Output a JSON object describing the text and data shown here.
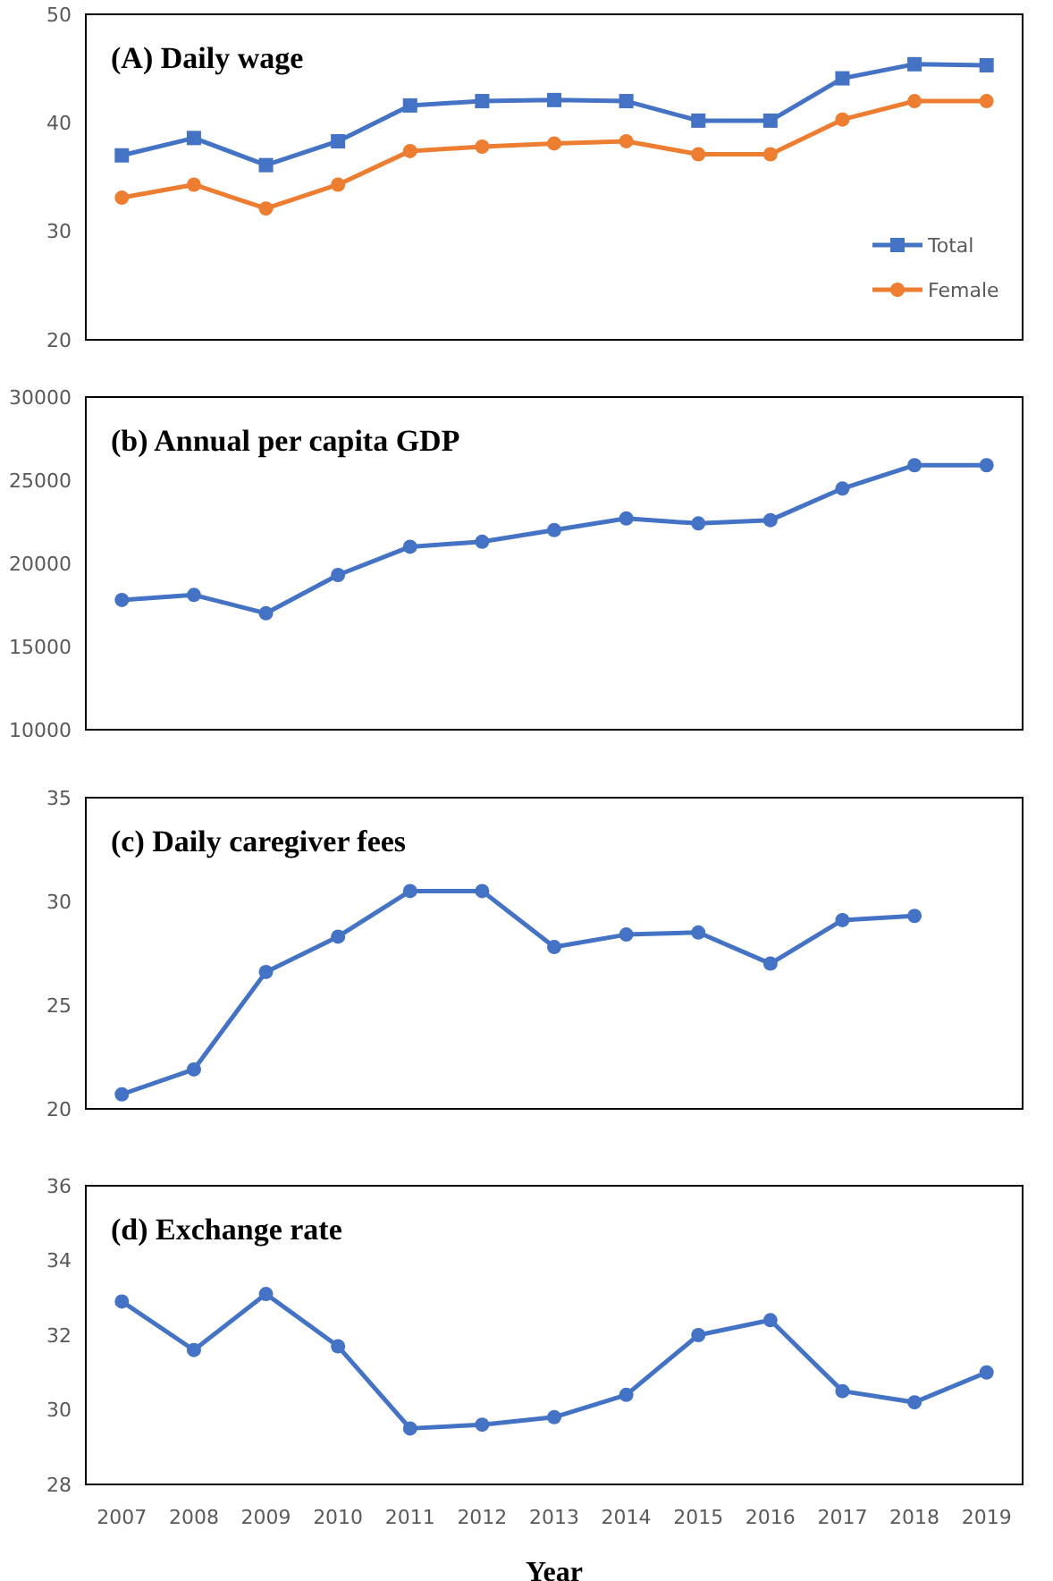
{
  "chart_data": [
    {
      "type": "line",
      "title": "(A) Daily wage",
      "categories": [
        "2007",
        "2008",
        "2009",
        "2010",
        "2011",
        "2012",
        "2013",
        "2014",
        "2015",
        "2016",
        "2017",
        "2018",
        "2019"
      ],
      "series": [
        {
          "name": "Total",
          "color": "#4472c4",
          "marker": "square",
          "values": [
            37,
            38.6,
            36.1,
            38.3,
            41.6,
            42,
            42.1,
            42,
            40.2,
            40.2,
            44.1,
            45.4,
            45.3
          ]
        },
        {
          "name": "Female",
          "color": "#ed7d31",
          "marker": "circle",
          "values": [
            33.1,
            34.3,
            32.1,
            34.3,
            37.4,
            37.8,
            38.1,
            38.3,
            37.1,
            37.1,
            40.3,
            42,
            42
          ]
        }
      ],
      "ylim": [
        20,
        50
      ],
      "yticks": [
        20,
        30,
        40,
        50
      ],
      "legend": "bottom right",
      "grid": false,
      "tick_labels": "y"
    },
    {
      "type": "line",
      "title": "(b) Annual per capita GDP",
      "categories": [
        "2007",
        "2008",
        "2009",
        "2010",
        "2011",
        "2012",
        "2013",
        "2014",
        "2015",
        "2016",
        "2017",
        "2018",
        "2019"
      ],
      "series": [
        {
          "color": "#4472c4",
          "marker": "circle",
          "values": [
            17800,
            18100,
            17000,
            19300,
            21000,
            21300,
            22000,
            22700,
            22400,
            22600,
            24500,
            25900,
            25900
          ]
        }
      ],
      "ylim": [
        10000,
        30000
      ],
      "yticks": [
        10000,
        15000,
        20000,
        25000,
        30000
      ],
      "grid": false,
      "tick_labels": "y"
    },
    {
      "type": "line",
      "title": "(c) Daily caregiver fees",
      "categories": [
        "2007",
        "2008",
        "2009",
        "2010",
        "2011",
        "2012",
        "2013",
        "2014",
        "2015",
        "2016",
        "2017",
        "2018",
        "2019"
      ],
      "series": [
        {
          "color": "#4472c4",
          "marker": "circle",
          "values": [
            20.7,
            21.9,
            26.6,
            28.3,
            30.5,
            30.5,
            27.8,
            28.4,
            28.5,
            27,
            29.1,
            29.3,
            null
          ]
        }
      ],
      "ylim": [
        20,
        35
      ],
      "yticks": [
        20,
        25,
        30,
        35
      ],
      "grid": false,
      "tick_labels": "y"
    },
    {
      "type": "line",
      "title": "(d) Exchange rate",
      "xlabel": "Year",
      "categories": [
        "2007",
        "2008",
        "2009",
        "2010",
        "2011",
        "2012",
        "2013",
        "2014",
        "2015",
        "2016",
        "2017",
        "2018",
        "2019"
      ],
      "series": [
        {
          "color": "#4472c4",
          "marker": "circle",
          "values": [
            32.9,
            31.6,
            33.1,
            31.7,
            29.5,
            29.6,
            29.8,
            30.4,
            32,
            32.4,
            30.5,
            30.2,
            31
          ]
        }
      ],
      "ylim": [
        28,
        36
      ],
      "yticks": [
        28,
        30,
        32,
        34,
        36
      ],
      "grid": false
    }
  ]
}
